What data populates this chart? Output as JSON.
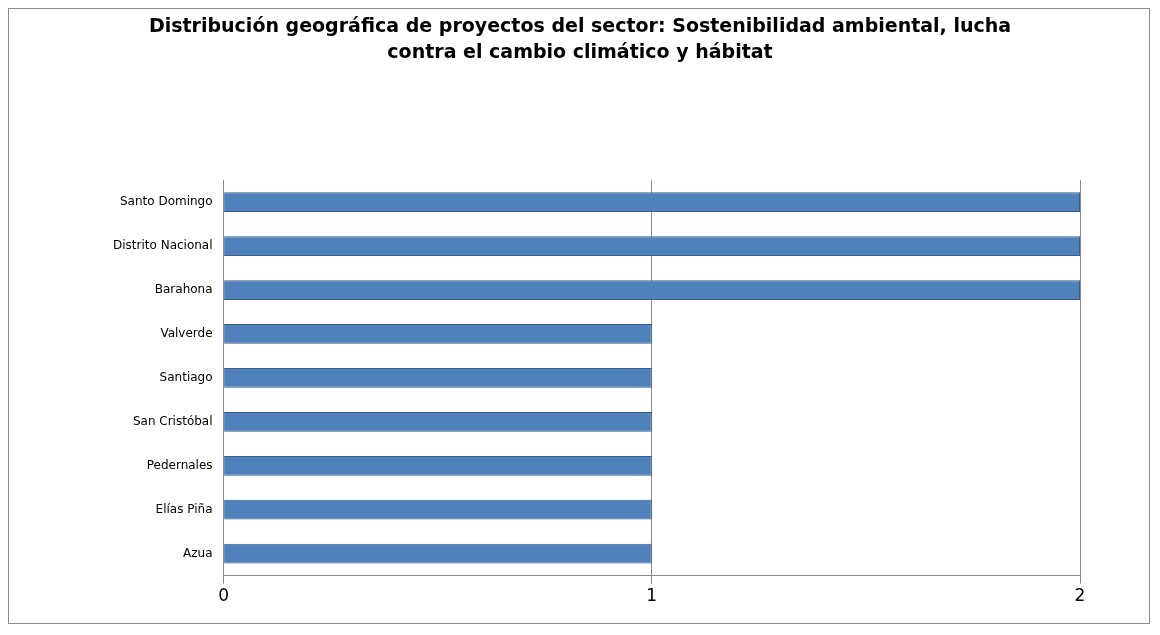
{
  "chart_data": {
    "type": "bar",
    "orientation": "horizontal",
    "title": "Distribución geográfica de proyectos del sector: Sostenibilidad ambiental, lucha contra el cambio climático y hábitat",
    "categories": [
      "Santo Domingo",
      "Distrito Nacional",
      "Barahona",
      "Valverde",
      "Santiago",
      "San Cristóbal",
      "Pedernales",
      "Elías Piña",
      "Azua"
    ],
    "values": [
      2,
      2,
      2,
      1,
      1,
      1,
      1,
      1,
      1
    ],
    "color": "#4f81bd",
    "xlim": [
      0,
      2
    ],
    "xticks": [
      0,
      1,
      2
    ],
    "grid": "x",
    "legend": false
  }
}
